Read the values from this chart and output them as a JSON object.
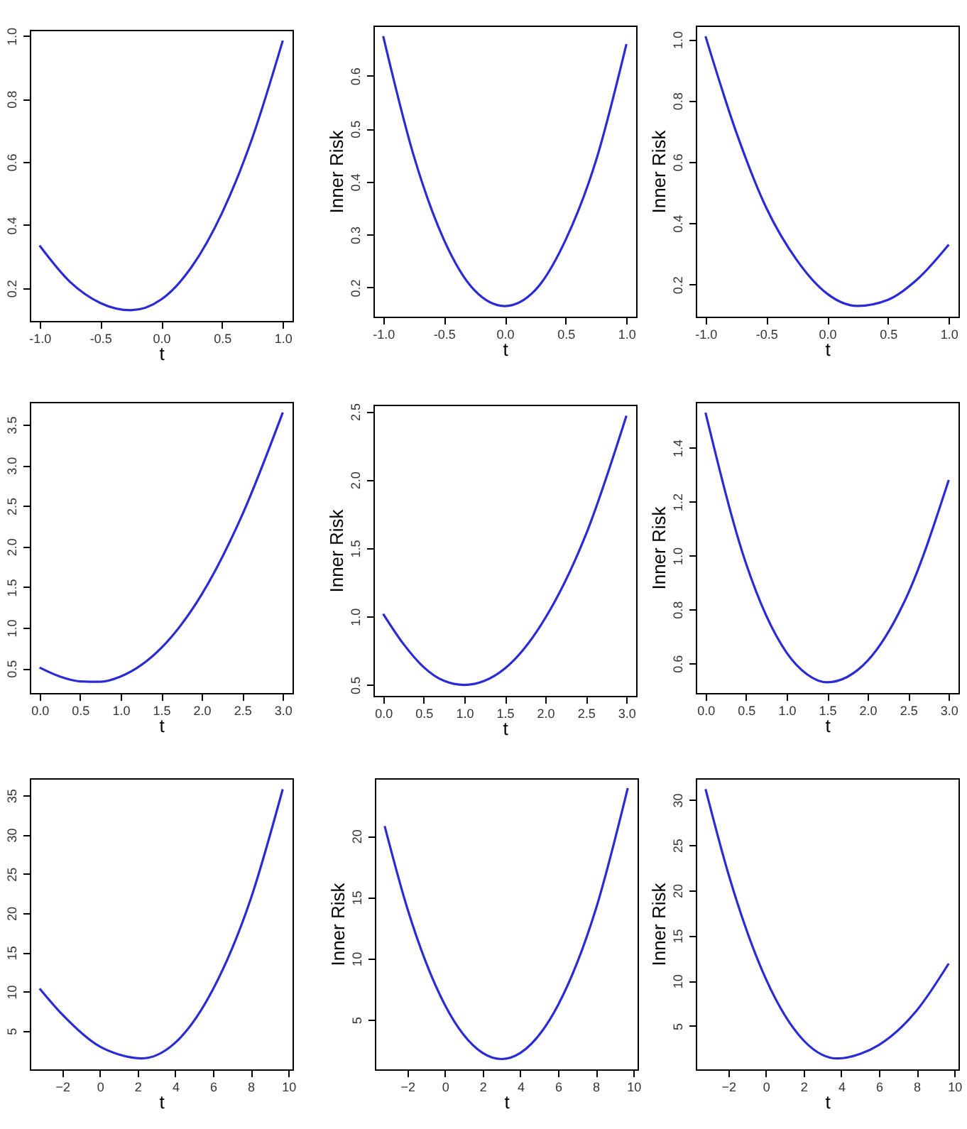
{
  "chart_data": [
    {
      "type": "line",
      "xlabel": "t",
      "x": [
        -1,
        -0.75,
        -0.5,
        -0.25,
        0,
        0.25,
        0.5,
        0.75,
        1
      ],
      "series": [
        {
          "color": "#2b2bd6",
          "values": [
            0.335,
            0.22,
            0.153,
            0.13,
            0.164,
            0.267,
            0.438,
            0.677,
            0.985
          ]
        }
      ],
      "xlim": [
        -1.08,
        1.08
      ],
      "ylim": [
        0.096,
        1.019
      ],
      "xticks": [
        {
          "value": -1,
          "label": "-1.0"
        },
        {
          "value": -0.5,
          "label": "-0.5"
        },
        {
          "value": 0,
          "label": "0.0"
        },
        0.5,
        {
          "value": 1,
          "label": "1.0"
        }
      ],
      "yticks": [
        0.2,
        0.4,
        0.6,
        0.8,
        {
          "value": 1,
          "label": "1.0"
        }
      ]
    },
    {
      "type": "line",
      "xlabel": "t",
      "ylabel": "Inner Risk",
      "x": [
        -1,
        -0.75,
        -0.5,
        -0.25,
        0,
        0.25,
        0.5,
        0.75,
        1
      ],
      "series": [
        {
          "color": "#2b2bd6",
          "values": [
            0.675,
            0.45,
            0.29,
            0.195,
            0.165,
            0.195,
            0.29,
            0.44,
            0.66
          ]
        }
      ],
      "xlim": [
        -1.08,
        1.08
      ],
      "ylim": [
        0.145,
        0.695
      ],
      "xticks": [
        {
          "value": -1,
          "label": "-1.0"
        },
        {
          "value": -0.5,
          "label": "-0.5"
        },
        {
          "value": 0,
          "label": "0.0"
        },
        0.5,
        {
          "value": 1,
          "label": "1.0"
        }
      ],
      "yticks": [
        0.2,
        0.3,
        0.4,
        0.5,
        0.6
      ]
    },
    {
      "type": "line",
      "xlabel": "t",
      "ylabel": "Inner Risk",
      "x": [
        -1,
        -0.75,
        -0.5,
        -0.25,
        0,
        0.25,
        0.5,
        0.75,
        1
      ],
      "series": [
        {
          "color": "#2b2bd6",
          "values": [
            1.01,
            0.7,
            0.45,
            0.28,
            0.17,
            0.13,
            0.15,
            0.22,
            0.33
          ]
        }
      ],
      "xlim": [
        -1.08,
        1.08
      ],
      "ylim": [
        0.095,
        1.045
      ],
      "xticks": [
        {
          "value": -1,
          "label": "-1.0"
        },
        {
          "value": -0.5,
          "label": "-0.5"
        },
        {
          "value": 0,
          "label": "0.0"
        },
        0.5,
        {
          "value": 1,
          "label": "1.0"
        }
      ],
      "yticks": [
        0.2,
        0.4,
        0.6,
        0.8,
        {
          "value": 1,
          "label": "1.0"
        }
      ]
    },
    {
      "type": "line",
      "xlabel": "t",
      "x": [
        0,
        0.25,
        0.5,
        0.75,
        1,
        1.5,
        2,
        2.5,
        3
      ],
      "series": [
        {
          "color": "#2b2bd6",
          "values": [
            0.51,
            0.4,
            0.34,
            0.335,
            0.4,
            0.75,
            1.41,
            2.39,
            3.65
          ]
        }
      ],
      "xlim": [
        -0.12,
        3.12
      ],
      "ylim": [
        0.197,
        3.78
      ],
      "xticks": [
        {
          "value": 0,
          "label": "0.0"
        },
        0.5,
        {
          "value": 1,
          "label": "1.0"
        },
        1.5,
        {
          "value": 2,
          "label": "2.0"
        },
        2.5,
        {
          "value": 3,
          "label": "3.0"
        }
      ],
      "yticks": [
        0.5,
        {
          "value": 1,
          "label": "1.0"
        },
        1.5,
        {
          "value": 2,
          "label": "2.0"
        },
        2.5,
        {
          "value": 3,
          "label": "3.0"
        },
        3.5
      ]
    },
    {
      "type": "line",
      "xlabel": "t",
      "ylabel": "Inner Risk",
      "x": [
        0,
        0.25,
        0.5,
        0.75,
        1,
        1.25,
        1.5,
        2,
        2.5,
        3
      ],
      "series": [
        {
          "color": "#2b2bd6",
          "values": [
            1.02,
            0.8,
            0.63,
            0.53,
            0.5,
            0.53,
            0.62,
            0.99,
            1.6,
            2.47
          ]
        }
      ],
      "xlim": [
        -0.12,
        3.12
      ],
      "ylim": [
        0.42,
        2.55
      ],
      "xticks": [
        {
          "value": 0,
          "label": "0.0"
        },
        0.5,
        {
          "value": 1,
          "label": "1.0"
        },
        1.5,
        {
          "value": 2,
          "label": "2.0"
        },
        2.5,
        {
          "value": 3,
          "label": "3.0"
        }
      ],
      "yticks": [
        0.5,
        {
          "value": 1,
          "label": "1.0"
        },
        1.5,
        {
          "value": 2,
          "label": "2.0"
        },
        2.5
      ]
    },
    {
      "type": "line",
      "xlabel": "t",
      "ylabel": "Inner Risk",
      "x": [
        0,
        0.5,
        1,
        1.25,
        1.5,
        1.75,
        2,
        2.5,
        3
      ],
      "series": [
        {
          "color": "#2b2bd6",
          "values": [
            1.53,
            0.97,
            0.64,
            0.56,
            0.53,
            0.55,
            0.61,
            0.86,
            1.28
          ]
        }
      ],
      "xlim": [
        -0.12,
        3.12
      ],
      "ylim": [
        0.49,
        1.57
      ],
      "xticks": [
        {
          "value": 0,
          "label": "0.0"
        },
        0.5,
        {
          "value": 1,
          "label": "1.0"
        },
        1.5,
        {
          "value": 2,
          "label": "2.0"
        },
        2.5,
        {
          "value": 3,
          "label": "3.0"
        }
      ],
      "yticks": [
        0.6,
        0.8,
        {
          "value": 1,
          "label": "1.0"
        },
        1.2,
        1.4
      ]
    },
    {
      "type": "line",
      "xlabel": "t",
      "x": [
        -3.2,
        -2,
        0,
        1,
        2.2,
        3,
        4,
        6,
        8,
        9.7
      ],
      "series": [
        {
          "color": "#2b2bd6",
          "values": [
            10.4,
            7.1,
            3,
            2,
            1.5,
            1.9,
            3.5,
            10.3,
            21.8,
            35.8
          ]
        }
      ],
      "xlim": [
        -3.72,
        10.22
      ],
      "ylim": [
        0.1,
        37.2
      ],
      "xticks": [
        {
          "value": -2,
          "label": "−2"
        },
        0,
        2,
        4,
        6,
        8,
        10
      ],
      "yticks": [
        5,
        10,
        15,
        20,
        25,
        30,
        35
      ]
    },
    {
      "type": "line",
      "xlabel": "t",
      "ylabel": "Inner Risk",
      "x": [
        -3.2,
        -2,
        0,
        2,
        3,
        4,
        6,
        8,
        9.7
      ],
      "series": [
        {
          "color": "#2b2bd6",
          "values": [
            20.8,
            14.1,
            6.2,
            2.3,
            1.8,
            2.3,
            6.2,
            14,
            23.9
          ]
        }
      ],
      "xlim": [
        -3.72,
        10.22
      ],
      "ylim": [
        0.96,
        24.7
      ],
      "xticks": [
        {
          "value": -2,
          "label": "−2"
        },
        0,
        2,
        4,
        6,
        8,
        10
      ],
      "yticks": [
        5,
        10,
        15,
        20
      ]
    },
    {
      "type": "line",
      "xlabel": "t",
      "ylabel": "Inner Risk",
      "x": [
        -3.2,
        -2,
        0,
        2,
        3,
        3.8,
        5,
        6,
        8,
        9.7
      ],
      "series": [
        {
          "color": "#2b2bd6",
          "values": [
            31.2,
            21.9,
            10.2,
            3.4,
            1.8,
            1.4,
            1.9,
            2.9,
            6.7,
            11.9
          ]
        }
      ],
      "xlim": [
        -3.72,
        10.22
      ],
      "ylim": [
        0.2,
        32.4
      ],
      "xticks": [
        {
          "value": -2,
          "label": "−2"
        },
        0,
        2,
        4,
        6,
        8,
        10
      ],
      "yticks": [
        5,
        10,
        15,
        20,
        25,
        30
      ]
    }
  ]
}
